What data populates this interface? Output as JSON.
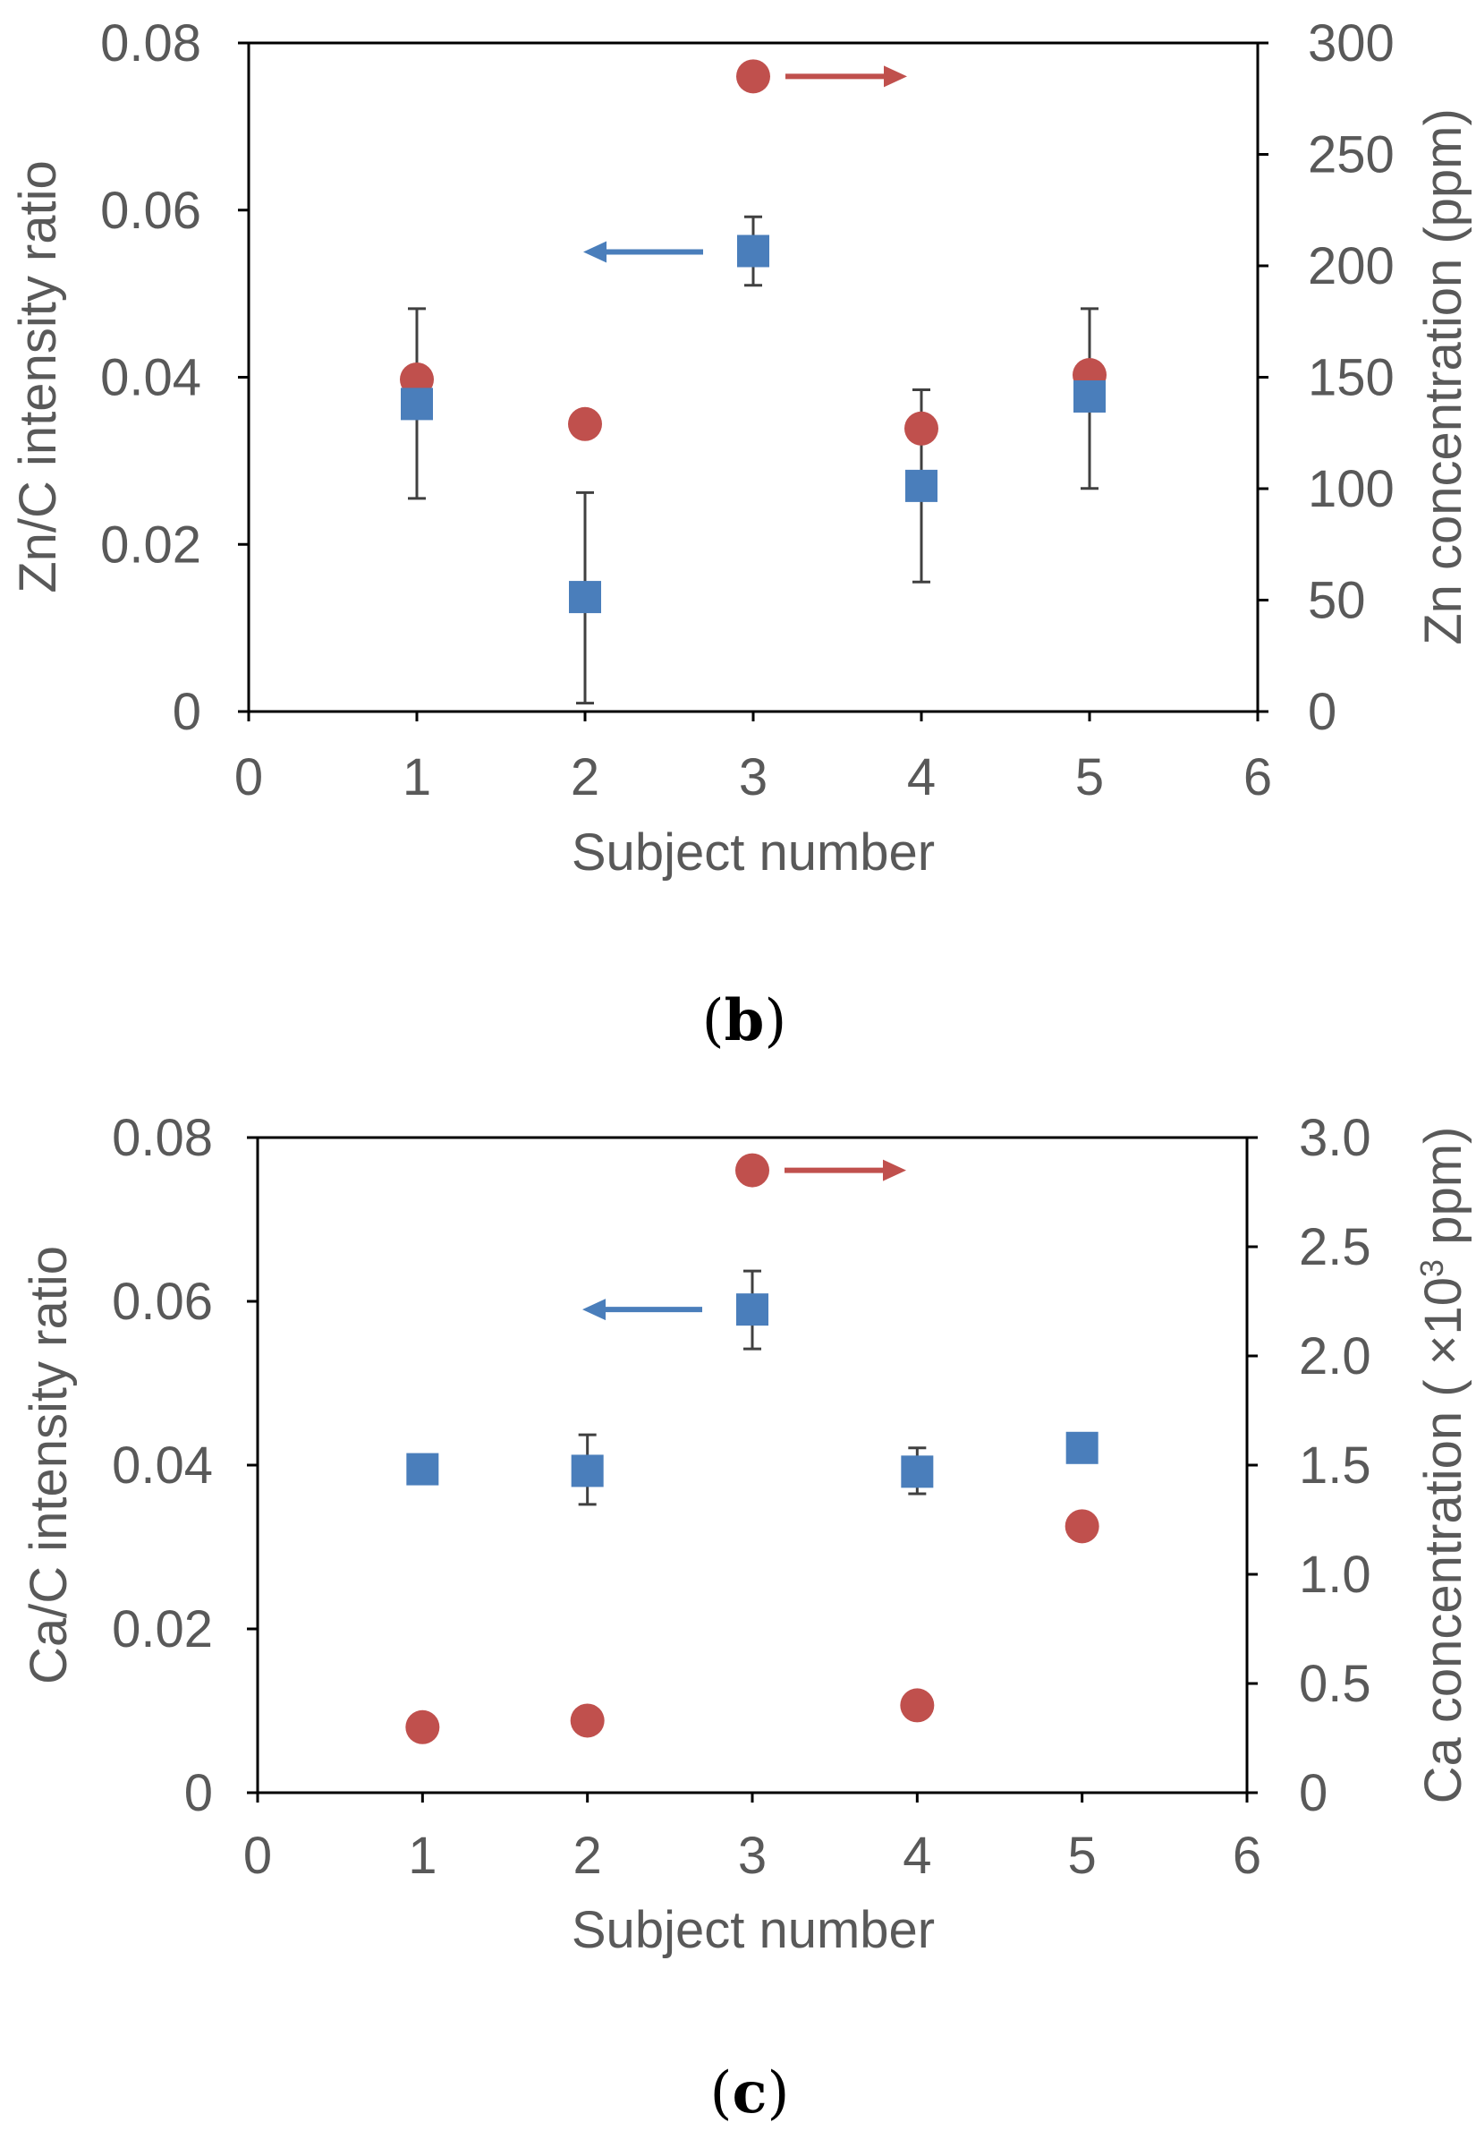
{
  "chart_data": [
    {
      "type": "scatter",
      "panel": "b",
      "caption": "b",
      "xlabel": "Subject number",
      "ylabel_left": "Zn/C intensity ratio",
      "ylabel_right": "Zn concentration (ppm)",
      "xlim": [
        0,
        6
      ],
      "ylim_left": [
        0,
        0.08
      ],
      "ylim_right": [
        0,
        300
      ],
      "xticks": [
        "0",
        "1",
        "2",
        "3",
        "4",
        "5",
        "6"
      ],
      "yticks_left": [
        "0",
        "0.02",
        "0.04",
        "0.06",
        "0.08"
      ],
      "yticks_right": [
        "0",
        "50",
        "100",
        "150",
        "200",
        "250",
        "300"
      ],
      "series": [
        {
          "name": "Zn/C intensity ratio",
          "axis": "left",
          "marker": "square",
          "color": "#4a7ebb",
          "x": [
            1,
            2,
            3,
            4,
            5
          ],
          "values": [
            0.0368,
            0.0137,
            0.0551,
            0.027,
            0.0377
          ],
          "err_low": [
            0.0255,
            0.001,
            0.051,
            0.0155,
            0.0267
          ],
          "err_high": [
            0.0482,
            0.0262,
            0.0592,
            0.0385,
            0.0482
          ]
        },
        {
          "name": "Zn concentration (ppm)",
          "axis": "right",
          "marker": "circle",
          "color": "#c0504d",
          "x": [
            1,
            2,
            3,
            4,
            5
          ],
          "values": [
            149,
            129,
            null,
            127,
            151
          ]
        }
      ],
      "legend_markers": [
        {
          "marker": "circle",
          "color": "#c0504d",
          "x": 3,
          "y_left": 0.076,
          "arrow": "right"
        },
        {
          "marker": "square",
          "color": "#4a7ebb",
          "x": 3,
          "y_left": 0.055,
          "arrow": "left"
        }
      ]
    },
    {
      "type": "scatter",
      "panel": "c",
      "caption": "c",
      "xlabel": "Subject number",
      "ylabel_left": "Ca/C intensity ratio",
      "ylabel_right_main": "Ca concentration ( ×10",
      "ylabel_right_sup": "3",
      "ylabel_right_end": " ppm)",
      "xlim": [
        0,
        6
      ],
      "ylim_left": [
        0,
        0.08
      ],
      "ylim_right": [
        0,
        3.0
      ],
      "xticks": [
        "0",
        "1",
        "2",
        "3",
        "4",
        "5",
        "6"
      ],
      "yticks_left": [
        "0",
        "0.02",
        "0.04",
        "0.06",
        "0.08"
      ],
      "yticks_right": [
        "0",
        "0.5",
        "1.0",
        "1.5",
        "2.0",
        "2.5",
        "3.0"
      ],
      "series": [
        {
          "name": "Ca/C intensity ratio",
          "axis": "left",
          "marker": "square",
          "color": "#4a7ebb",
          "x": [
            1,
            2,
            3,
            4,
            5
          ],
          "values": [
            0.0395,
            0.0393,
            0.059,
            0.0392,
            0.0421
          ],
          "err_low": [
            null,
            0.0352,
            0.0542,
            0.0365,
            null
          ],
          "err_high": [
            null,
            0.0437,
            0.0637,
            0.0421,
            null
          ]
        },
        {
          "name": "Ca concentration (×10^3 ppm)",
          "axis": "right",
          "marker": "circle",
          "color": "#c0504d",
          "x": [
            1,
            2,
            3,
            4,
            5
          ],
          "values": [
            0.3,
            0.33,
            null,
            0.4,
            1.22
          ]
        }
      ],
      "legend_markers": [
        {
          "marker": "circle",
          "color": "#c0504d",
          "x": 3,
          "y_left": 0.076,
          "arrow": "right"
        },
        {
          "marker": "square",
          "color": "#4a7ebb",
          "x": 3,
          "y_left": 0.059,
          "arrow": "left"
        }
      ]
    }
  ]
}
